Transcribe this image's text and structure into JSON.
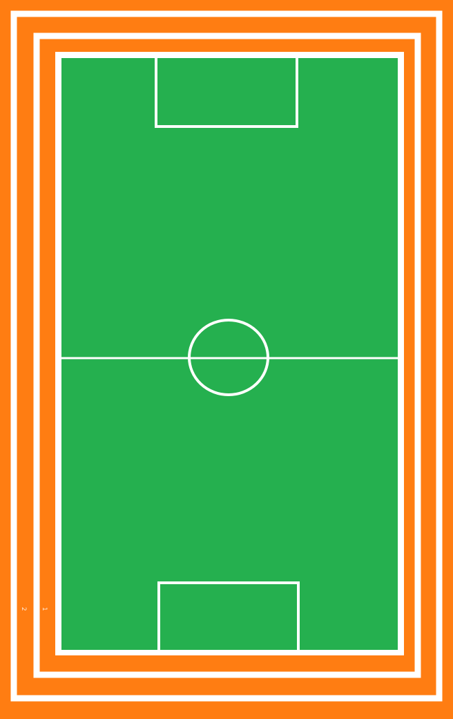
{
  "colors": {
    "track": "#ff7d12",
    "lane_line": "#ffffff",
    "pitch": "#25b04f",
    "pitch_line": "#ffffff"
  },
  "track": {
    "lanes": [
      {
        "number": "1"
      },
      {
        "number": "2"
      }
    ]
  },
  "pitch": {
    "features": [
      "halfway-line",
      "center-circle",
      "top-penalty-box",
      "bottom-penalty-box"
    ]
  }
}
